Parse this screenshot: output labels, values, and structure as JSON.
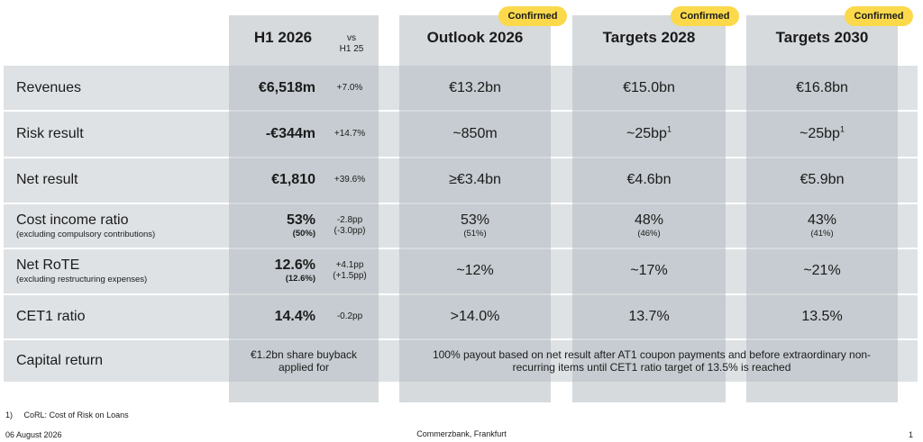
{
  "headers": {
    "h1": "H1 2026",
    "vs_line1": "vs",
    "vs_line2": "H1 25",
    "outlook": "Outlook 2026",
    "t2028": "Targets 2028",
    "t2030": "Targets 2030",
    "badge": "Confirmed"
  },
  "rows": {
    "revenues": {
      "label": "Revenues",
      "h1": "€6,518m",
      "vs": "+7.0%",
      "outlook": "€13.2bn",
      "t2028": "€15.0bn",
      "t2030": "€16.8bn"
    },
    "risk": {
      "label": "Risk result",
      "h1": "-€344m",
      "vs": "+14.7%",
      "outlook": "~850m",
      "t2028": "~25bp",
      "t2028_sup": "1",
      "t2030": "~25bp",
      "t2030_sup": "1"
    },
    "net": {
      "label": "Net result",
      "h1": "€1,810",
      "vs": "+39.6%",
      "outlook": "≥€3.4bn",
      "t2028": "€4.6bn",
      "t2030": "€5.9bn"
    },
    "cir": {
      "label": "Cost income ratio",
      "sublabel": "(excluding compulsory contributions)",
      "h1": "53%",
      "h1_sub": "(50%)",
      "vs": "-2.8pp",
      "vs_sub": "(-3.0pp)",
      "outlook": "53%",
      "outlook_sub": "(51%)",
      "t2028": "48%",
      "t2028_sub": "(46%)",
      "t2030": "43%",
      "t2030_sub": "(41%)"
    },
    "rote": {
      "label": "Net RoTE",
      "sublabel": "(excluding restructuring expenses)",
      "h1": "12.6%",
      "h1_sub": "(12.6%)",
      "vs": "+4.1pp",
      "vs_sub": "(+1.5pp)",
      "outlook": "~12%",
      "t2028": "~17%",
      "t2030": "~21%"
    },
    "cet1": {
      "label": "CET1 ratio",
      "h1": "14.4%",
      "vs": "-0.2pp",
      "outlook": ">14.0%",
      "t2028": "13.7%",
      "t2030": "13.5%"
    },
    "capital": {
      "label": "Capital return",
      "h1": "€1.2bn share buyback applied for",
      "rest": "100% payout based on net result after AT1 coupon payments and before extraordinary non-recurring items until CET1 ratio target of 13.5% is reached"
    }
  },
  "footnote": {
    "number": "1)",
    "text": "CoRL: Cost of Risk on Loans"
  },
  "footer": {
    "date": "06 August 2026",
    "center": "Commerzbank, Frankfurt",
    "page": "1"
  },
  "colors": {
    "column": "#d6dadd",
    "row": "#b0bbc1",
    "badge": "#fbd94b"
  }
}
